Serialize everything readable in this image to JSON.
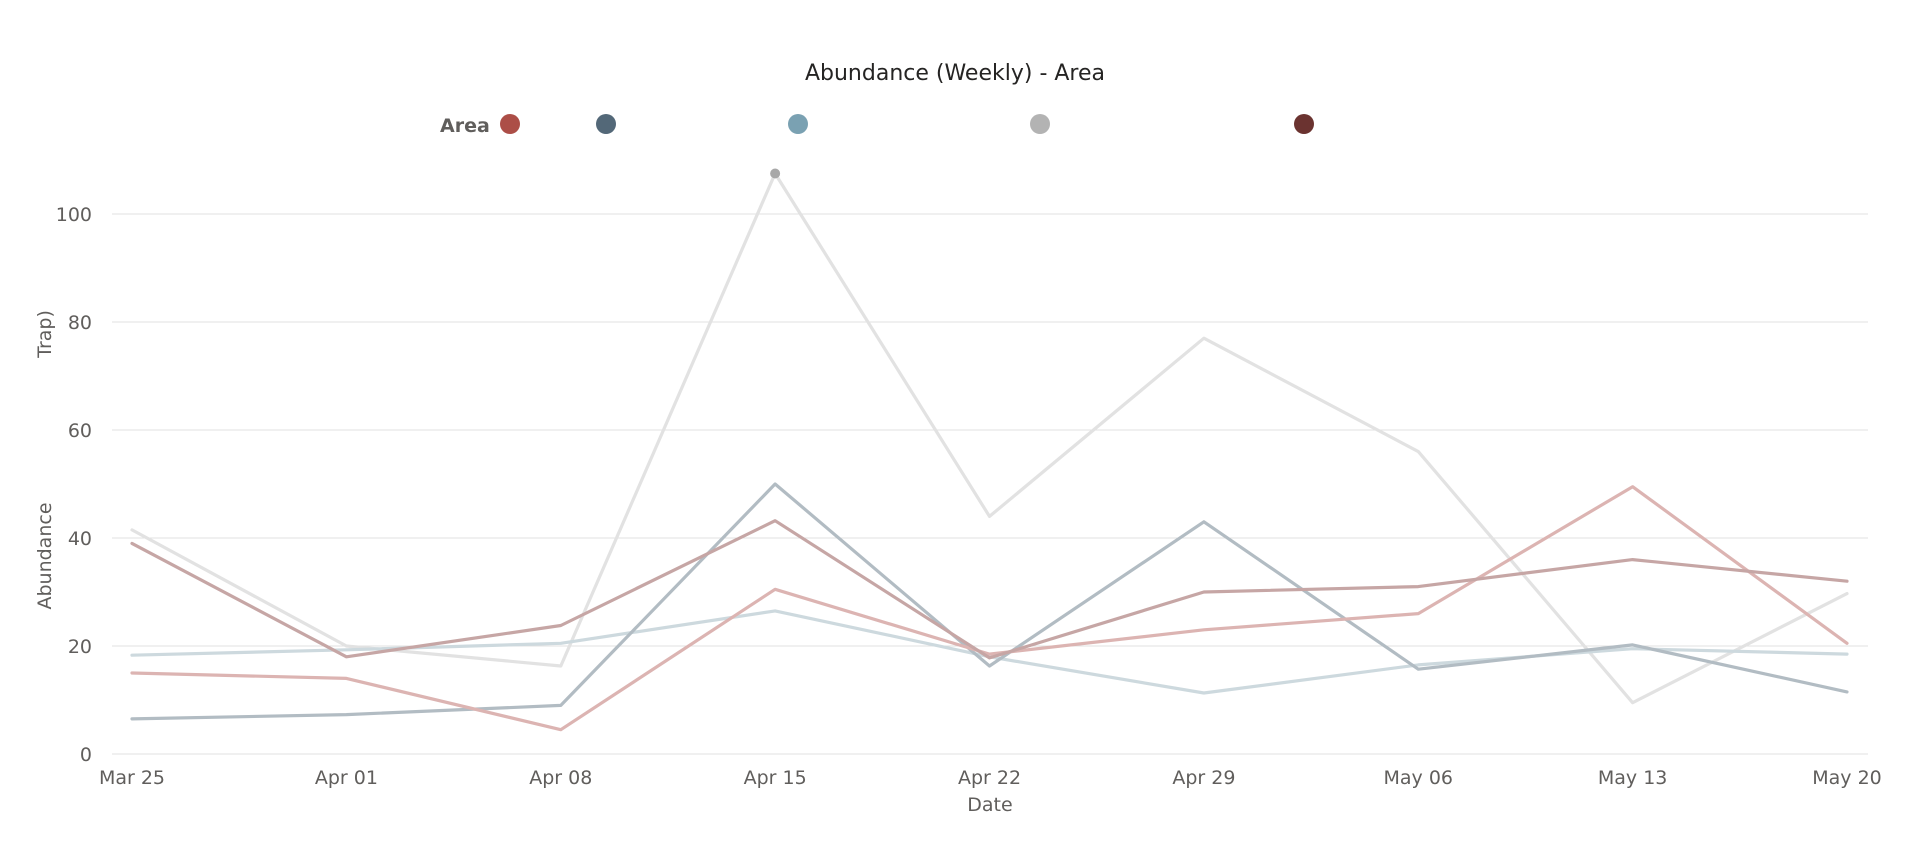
{
  "chart_data": {
    "type": "line",
    "title": "Abundance (Weekly) - Area",
    "xlabel": "Date",
    "ylabel": "Abundance (Trap)",
    "ylabel_parts": [
      "Abundance",
      "Trap)"
    ],
    "legend": {
      "title": "Area",
      "placement": "top"
    },
    "categories": [
      "Mar 25",
      "Apr 01",
      "Apr 08",
      "Apr 15",
      "Apr 22",
      "Apr 29",
      "May 06",
      "May 13",
      "May 20"
    ],
    "y_ticks": [
      0,
      20,
      40,
      60,
      80,
      100
    ],
    "ylim": [
      0,
      110
    ],
    "grid": true,
    "series": [
      {
        "label": "",
        "color": "#ac4e47",
        "line_color": "#dcb4b2",
        "values": [
          15,
          14,
          4.5,
          30.5,
          18.5,
          23,
          26,
          49.5,
          20.5
        ]
      },
      {
        "label": "",
        "color": "#536878",
        "line_color": "#b2bcc3",
        "values": [
          6.5,
          7.3,
          9,
          50,
          16.3,
          43,
          15.7,
          20.2,
          11.5
        ]
      },
      {
        "label": "",
        "color": "#7aa1b2",
        "line_color": "#cdd9de",
        "values": [
          18.3,
          19.3,
          20.5,
          26.5,
          18,
          11.3,
          16.5,
          19.5,
          18.5
        ]
      },
      {
        "label": "",
        "color": "#b3b3b3",
        "line_color": "#e2e2e2",
        "values": [
          41.5,
          20,
          16.3,
          107.5,
          44,
          77,
          56,
          9.5,
          29.7
        ]
      },
      {
        "label": "",
        "color": "#6b3330",
        "line_color": "#c6a6a5",
        "values": [
          39,
          18,
          23.8,
          43.2,
          17.8,
          30,
          31,
          36,
          32
        ]
      }
    ],
    "highlight_marker": {
      "series_index": 3,
      "category": "Apr 15"
    }
  }
}
